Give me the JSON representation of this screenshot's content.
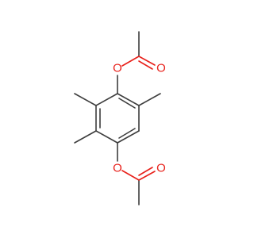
{
  "atoms": [
    "O",
    "O",
    "O",
    "O"
  ]
}
